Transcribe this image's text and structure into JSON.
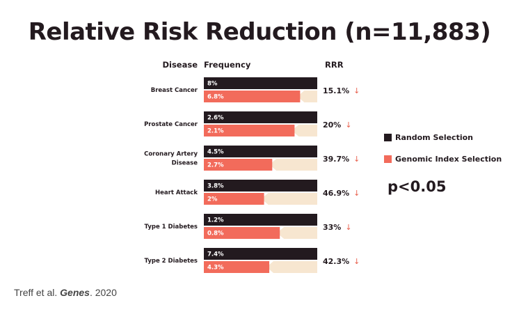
{
  "chart_data": {
    "type": "bar",
    "title": "Relative Risk Reduction (n=11,883)",
    "column_headers": {
      "disease": "Disease",
      "frequency": "Frequency",
      "rrr": "RRR"
    },
    "categories": [
      [
        "Breast Cancer"
      ],
      [
        "Prostate Cancer"
      ],
      [
        "Coronary Artery",
        "Disease"
      ],
      [
        "Heart Attack"
      ],
      [
        "Type 1 Diabetes"
      ],
      [
        "Type 2 Diabetes"
      ]
    ],
    "series": [
      {
        "name": "Random Selection",
        "color": "#231a1f",
        "labels": [
          "8%",
          "2.6%",
          "4.5%",
          "3.8%",
          "1.2%",
          "7.4%"
        ]
      },
      {
        "name": "Genomic Index Selection",
        "color": "#f26b5b",
        "labels": [
          "6.8%",
          "2.1%",
          "2.7%",
          "2%",
          "0.8%",
          "4.3%"
        ]
      }
    ],
    "reduction_fraction": [
      0.151,
      0.2,
      0.397,
      0.469,
      0.33,
      0.423
    ],
    "rrr_labels": [
      "15.1%",
      "20%",
      "39.7%",
      "46.9%",
      "33%",
      "42.3%"
    ],
    "arrow_glyph": "↓",
    "reduction_color": "#f7e6d0"
  },
  "legend": {
    "random": {
      "label": "Random Selection",
      "color": "#231a1f"
    },
    "genomic": {
      "label": "Genomic Index Selection",
      "color": "#f26b5b"
    }
  },
  "annotation": "p<0.05",
  "citation": {
    "authors": "Treff et al. ",
    "journal": "Genes",
    "year": ". 2020"
  }
}
